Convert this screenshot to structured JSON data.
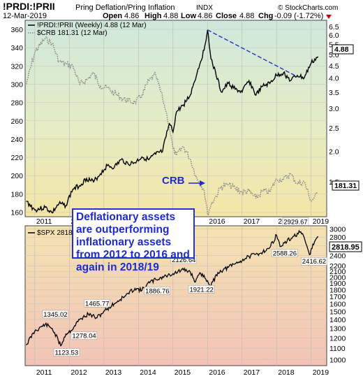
{
  "header": {
    "symbol": "!PRDI:!PRII",
    "description": "Pring Deflation/Pring Inflation",
    "exchange": "INDX",
    "date": "12-Mar-2019",
    "open_label": "Open",
    "open": "4.86",
    "high_label": "High",
    "high": "4.88",
    "low_label": "Low",
    "low": "4.86",
    "close_label": "Close",
    "close": "4.88",
    "chg_label": "Chg",
    "chg": "-0.09 (-1.72%)",
    "watermark": "© StockCharts.com"
  },
  "annotation": {
    "lines": [
      "Deflationary assets",
      "are outperforming",
      "inflationary assets",
      "from 2012 to 2016 and",
      "again in 2018/19"
    ]
  },
  "crb_callout": "CRB",
  "colors": {
    "accent_blue": "#1d2bd0",
    "ratio_line": "#000000",
    "crb_line": "#888888",
    "trend_line": "#2633c9"
  },
  "chart_data": [
    {
      "type": "line",
      "legend": [
        "!PRDI:!PRII (Weekly) 4.88 (12 Mar)",
        "$CRB 181.31 (12 Mar)"
      ],
      "x_ticks": [
        "2011",
        "2012",
        "2013",
        "2014",
        "2015",
        "2016",
        "2017",
        "2018",
        "2019"
      ],
      "left_axis_ticks": [
        "160",
        "180",
        "200",
        "220",
        "240",
        "260",
        "280",
        "300",
        "320",
        "340",
        "360"
      ],
      "left_ylim": [
        155,
        370
      ],
      "right_axis_ticks": [
        "1.5",
        "2.0",
        "2.5",
        "3.0",
        "3.5",
        "4.0",
        "4.5",
        "5.0",
        "5.5",
        "6.0",
        "6.5"
      ],
      "right_scale": "log",
      "right_ylim": [
        1.08,
        6.9
      ],
      "last_value_labels": [
        "4.88",
        "181.31"
      ],
      "series": [
        {
          "name": "!PRDI:!PRII",
          "axis": "right",
          "style": "solid",
          "x": [
            2010.75,
            2011.0,
            2011.3,
            2011.5,
            2011.7,
            2011.9,
            2012.1,
            2012.3,
            2012.5,
            2012.7,
            2012.9,
            2013.1,
            2013.3,
            2013.5,
            2013.7,
            2013.9,
            2014.1,
            2014.3,
            2014.5,
            2014.7,
            2014.8,
            2014.9,
            2015.0,
            2015.1,
            2015.3,
            2015.5,
            2015.7,
            2015.9,
            2016.0,
            2016.1,
            2016.25,
            2016.4,
            2016.6,
            2016.8,
            2017.0,
            2017.2,
            2017.4,
            2017.6,
            2017.8,
            2018.0,
            2018.2,
            2018.4,
            2018.6,
            2018.8,
            2019.0,
            2019.2
          ],
          "values": [
            1.25,
            1.15,
            1.18,
            1.12,
            1.22,
            1.2,
            1.4,
            1.45,
            1.55,
            1.5,
            1.62,
            1.75,
            1.72,
            1.85,
            1.78,
            1.8,
            1.9,
            1.85,
            1.95,
            2.0,
            2.3,
            2.6,
            2.4,
            2.9,
            3.1,
            3.4,
            4.2,
            5.2,
            6.3,
            4.8,
            4.1,
            3.5,
            3.8,
            3.6,
            3.5,
            3.9,
            3.4,
            3.7,
            3.8,
            4.1,
            4.2,
            3.9,
            4.1,
            4.0,
            4.6,
            4.9
          ]
        },
        {
          "name": "$CRB",
          "axis": "left",
          "style": "dotted",
          "x": [
            2010.75,
            2011.0,
            2011.3,
            2011.5,
            2011.7,
            2011.9,
            2012.1,
            2012.3,
            2012.5,
            2012.7,
            2012.9,
            2013.1,
            2013.3,
            2013.5,
            2013.7,
            2013.9,
            2014.1,
            2014.3,
            2014.5,
            2014.7,
            2014.8,
            2014.9,
            2015.0,
            2015.1,
            2015.3,
            2015.5,
            2015.7,
            2015.9,
            2016.0,
            2016.1,
            2016.25,
            2016.4,
            2016.6,
            2016.8,
            2017.0,
            2017.2,
            2017.4,
            2017.6,
            2017.8,
            2018.0,
            2018.2,
            2018.4,
            2018.6,
            2018.8,
            2019.0,
            2019.2
          ],
          "values": [
            300,
            335,
            350,
            345,
            325,
            322,
            320,
            300,
            305,
            312,
            298,
            296,
            290,
            285,
            282,
            280,
            288,
            304,
            310,
            285,
            270,
            252,
            230,
            222,
            232,
            218,
            196,
            185,
            158,
            168,
            178,
            188,
            190,
            186,
            182,
            183,
            175,
            183,
            182,
            196,
            196,
            202,
            191,
            193,
            172,
            181
          ]
        },
        {
          "name": "trendline",
          "axis": "right",
          "style": "dashed",
          "x": [
            2016.0,
            2018.6
          ],
          "values": [
            6.3,
            4.05
          ]
        }
      ]
    },
    {
      "type": "line",
      "legend": [
        "$SPX 2818.95"
      ],
      "x_ticks": [
        "2011",
        "2012",
        "2013",
        "2014",
        "2015",
        "2016",
        "2017",
        "2018",
        "2019"
      ],
      "right_axis_ticks": [
        "1000",
        "1100",
        "1200",
        "1300",
        "1400",
        "1500",
        "1600",
        "1700",
        "1800",
        "1900",
        "2000",
        "2100",
        "2200",
        "2400",
        "2600",
        "2800",
        "3000"
      ],
      "right_scale": "log",
      "ylim": [
        950,
        3080
      ],
      "last_value_label": "2818.95",
      "annotations": [
        {
          "label": "1345.02",
          "x": 2011.3,
          "y": 1345.02
        },
        {
          "label": "1123.53",
          "x": 2011.75,
          "y": 1123.53
        },
        {
          "label": "1278.04",
          "x": 2012.05,
          "y": 1278.04
        },
        {
          "label": "1465.77",
          "x": 2012.55,
          "y": 1465.77
        },
        {
          "label": "1886.76",
          "x": 2014.25,
          "y": 1886.76
        },
        {
          "label": "2126.64",
          "x": 2015.3,
          "y": 2126.64
        },
        {
          "label": "1921.22",
          "x": 2015.65,
          "y": 1921.22
        },
        {
          "label": "2929.67",
          "x": 2018.7,
          "y": 2929.67
        },
        {
          "label": "2588.26",
          "x": 2018.1,
          "y": 2588.26
        },
        {
          "label": "2416.62",
          "x": 2018.95,
          "y": 2416.62
        }
      ],
      "series": [
        {
          "name": "$SPX",
          "x": [
            2010.75,
            2011.0,
            2011.3,
            2011.5,
            2011.75,
            2011.9,
            2012.05,
            2012.3,
            2012.55,
            2012.8,
            2013.0,
            2013.3,
            2013.6,
            2013.9,
            2014.1,
            2014.25,
            2014.5,
            2014.8,
            2015.0,
            2015.3,
            2015.5,
            2015.65,
            2015.8,
            2016.0,
            2016.1,
            2016.3,
            2016.6,
            2016.9,
            2017.2,
            2017.5,
            2017.8,
            2018.0,
            2018.1,
            2018.3,
            2018.5,
            2018.7,
            2018.85,
            2018.95,
            2019.1,
            2019.2
          ],
          "values": [
            1130,
            1270,
            1345,
            1300,
            1123,
            1240,
            1278,
            1400,
            1465,
            1420,
            1500,
            1600,
            1700,
            1820,
            1790,
            1886,
            1960,
            2020,
            2060,
            2126,
            2090,
            1921,
            2070,
            1940,
            1860,
            2080,
            2170,
            2270,
            2380,
            2440,
            2560,
            2850,
            2588,
            2700,
            2820,
            2929,
            2650,
            2416,
            2700,
            2819
          ]
        }
      ]
    }
  ]
}
